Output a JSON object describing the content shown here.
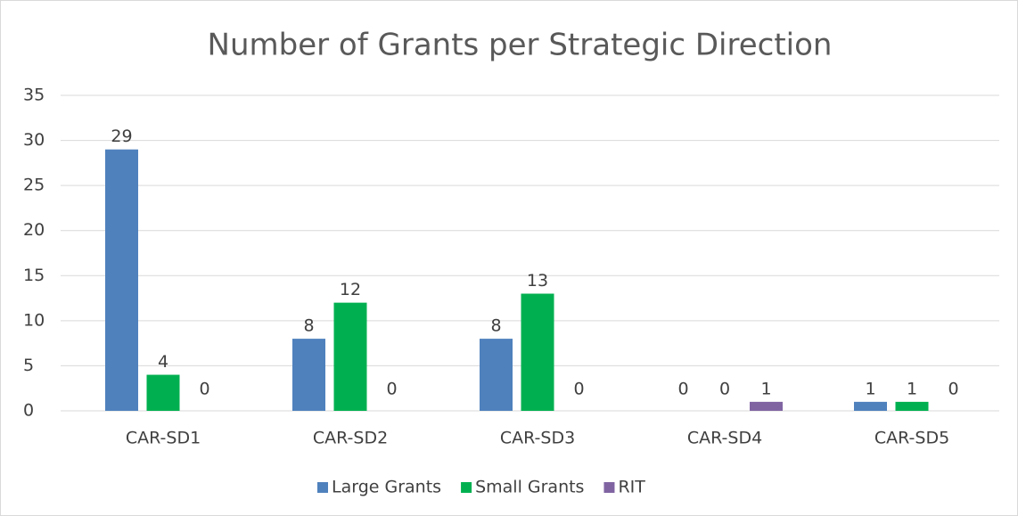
{
  "chart_data": {
    "type": "bar",
    "title": "Number of Grants per Strategic Direction",
    "categories": [
      "CAR-SD1",
      "CAR-SD2",
      "CAR-SD3",
      "CAR-SD4",
      "CAR-SD5"
    ],
    "series": [
      {
        "name": "Large Grants",
        "color": "#4f81bd",
        "values": [
          29,
          8,
          8,
          0,
          1
        ]
      },
      {
        "name": "Small Grants",
        "color": "#00b050",
        "values": [
          4,
          12,
          13,
          0,
          1
        ]
      },
      {
        "name": "RIT",
        "color": "#8064a2",
        "values": [
          0,
          0,
          0,
          1,
          0
        ]
      }
    ],
    "ylim": [
      0,
      35
    ],
    "yticks": [
      0,
      5,
      10,
      15,
      20,
      25,
      30,
      35
    ],
    "grid": true,
    "legend": "bottom"
  }
}
